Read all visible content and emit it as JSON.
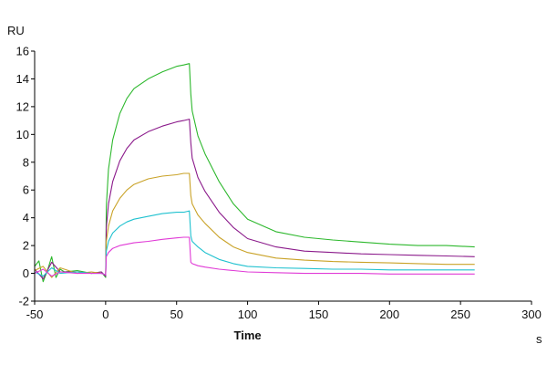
{
  "chart_data": {
    "type": "line",
    "title": "",
    "xlabel": "Time",
    "x_unit": "s",
    "ylabel": "RU",
    "xlim": [
      -50,
      300
    ],
    "ylim": [
      -2,
      16
    ],
    "xticks": [
      -50,
      0,
      50,
      100,
      150,
      200,
      250,
      300
    ],
    "yticks": [
      -2,
      0,
      2,
      4,
      6,
      8,
      10,
      12,
      14,
      16
    ],
    "grid": false,
    "legend": "none",
    "series": [
      {
        "name": "green",
        "color": "#2db82d",
        "x": [
          -50,
          -47,
          -44,
          -41,
          -38,
          -35,
          -32,
          -29,
          -20,
          -10,
          -3,
          0,
          0.5,
          2,
          5,
          10,
          15,
          20,
          30,
          40,
          50,
          55,
          59,
          60,
          61,
          65,
          70,
          80,
          90,
          100,
          120,
          140,
          160,
          180,
          200,
          220,
          240,
          260
        ],
        "y": [
          0.5,
          0.9,
          -0.6,
          0.2,
          1.2,
          -0.3,
          0.3,
          0.1,
          0.2,
          0.0,
          0.1,
          -0.3,
          4.8,
          7.5,
          9.6,
          11.5,
          12.6,
          13.3,
          14.0,
          14.5,
          14.9,
          15.0,
          15.1,
          12.9,
          11.7,
          9.9,
          8.6,
          6.6,
          5.0,
          3.9,
          3.0,
          2.6,
          2.4,
          2.25,
          2.1,
          2.0,
          2.0,
          1.9
        ]
      },
      {
        "name": "purple",
        "color": "#8b1a8b",
        "x": [
          -50,
          -44,
          -38,
          -32,
          -20,
          -10,
          -3,
          0,
          0.5,
          2,
          5,
          10,
          15,
          20,
          30,
          40,
          50,
          55,
          59,
          60,
          61,
          65,
          70,
          80,
          90,
          100,
          120,
          140,
          160,
          180,
          200,
          220,
          240,
          260
        ],
        "y": [
          0.3,
          -0.4,
          0.8,
          0.1,
          0.1,
          0.0,
          0.1,
          -0.2,
          3.3,
          5.0,
          6.6,
          8.1,
          9.0,
          9.6,
          10.2,
          10.6,
          10.9,
          11.0,
          11.1,
          9.4,
          8.3,
          6.9,
          5.9,
          4.4,
          3.3,
          2.5,
          1.9,
          1.6,
          1.5,
          1.4,
          1.35,
          1.3,
          1.25,
          1.2
        ]
      },
      {
        "name": "gold",
        "color": "#c9a227",
        "x": [
          -50,
          -44,
          -38,
          -32,
          -20,
          -10,
          -3,
          0,
          0.5,
          2,
          5,
          10,
          15,
          20,
          30,
          40,
          50,
          55,
          59,
          60,
          61,
          65,
          70,
          80,
          90,
          100,
          120,
          140,
          160,
          180,
          200,
          220,
          240,
          260
        ],
        "y": [
          0.2,
          0.5,
          -0.3,
          0.4,
          0.0,
          0.1,
          0.0,
          -0.1,
          2.3,
          3.4,
          4.5,
          5.4,
          6.0,
          6.4,
          6.8,
          7.0,
          7.1,
          7.2,
          7.2,
          5.6,
          5.0,
          4.2,
          3.6,
          2.6,
          1.9,
          1.5,
          1.1,
          0.95,
          0.85,
          0.8,
          0.75,
          0.7,
          0.65,
          0.65
        ]
      },
      {
        "name": "cyan",
        "color": "#1fc1cf",
        "x": [
          -50,
          -44,
          -38,
          -32,
          -20,
          -10,
          -3,
          0,
          0.5,
          2,
          5,
          10,
          15,
          20,
          30,
          40,
          50,
          55,
          59,
          60,
          61,
          65,
          70,
          80,
          90,
          100,
          120,
          140,
          160,
          180,
          200,
          220,
          240,
          260
        ],
        "y": [
          0.1,
          -0.2,
          0.4,
          0.0,
          0.1,
          0.0,
          0.0,
          -0.1,
          1.6,
          2.3,
          2.9,
          3.4,
          3.7,
          3.9,
          4.1,
          4.3,
          4.4,
          4.4,
          4.5,
          2.7,
          2.3,
          1.9,
          1.5,
          1.0,
          0.7,
          0.5,
          0.4,
          0.35,
          0.3,
          0.3,
          0.25,
          0.25,
          0.25,
          0.25
        ]
      },
      {
        "name": "magenta",
        "color": "#e03ad6",
        "x": [
          -50,
          -44,
          -38,
          -32,
          -20,
          -10,
          -3,
          0,
          0.5,
          2,
          5,
          10,
          15,
          20,
          30,
          40,
          50,
          55,
          59,
          60,
          61,
          65,
          70,
          80,
          90,
          100,
          120,
          140,
          160,
          180,
          200,
          220,
          240,
          260
        ],
        "y": [
          0.0,
          0.3,
          -0.2,
          0.1,
          0.0,
          0.0,
          0.0,
          -0.1,
          1.2,
          1.5,
          1.8,
          2.0,
          2.1,
          2.2,
          2.3,
          2.45,
          2.55,
          2.6,
          2.6,
          0.8,
          0.7,
          0.55,
          0.45,
          0.3,
          0.2,
          0.1,
          0.05,
          0.0,
          0.0,
          0.0,
          -0.05,
          -0.05,
          -0.05,
          -0.05
        ]
      }
    ]
  }
}
